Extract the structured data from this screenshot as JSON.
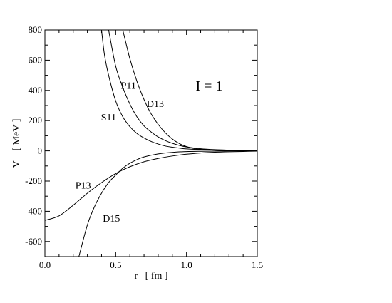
{
  "chart_data": {
    "type": "line",
    "xlabel": "r   [ fm ]",
    "ylabel": "V    [ MeV ]",
    "xlim": [
      0,
      1.5
    ],
    "ylim": [
      -700,
      800
    ],
    "x_ticks": [
      "0.0",
      "0.5",
      "1.0",
      "1.5"
    ],
    "y_ticks": [
      "-600",
      "-400",
      "-200",
      "0",
      "200",
      "400",
      "600",
      "800"
    ],
    "annotation": "I = 1",
    "grid": false,
    "series": [
      {
        "name": "S11",
        "x": [
          0.4,
          0.42,
          0.45,
          0.5,
          0.55,
          0.6,
          0.65,
          0.7,
          0.75,
          0.8,
          0.85,
          0.9,
          0.95,
          1.0,
          1.1,
          1.2,
          1.3,
          1.4,
          1.5
        ],
        "values": [
          800,
          640,
          500,
          330,
          225,
          160,
          115,
          85,
          62,
          45,
          32,
          24,
          18,
          13,
          8,
          5,
          3,
          2,
          1
        ]
      },
      {
        "name": "P11",
        "x": [
          0.45,
          0.5,
          0.55,
          0.6,
          0.65,
          0.7,
          0.75,
          0.8,
          0.85,
          0.9,
          0.95,
          1.0,
          1.1,
          1.2,
          1.3,
          1.4,
          1.5
        ],
        "values": [
          800,
          560,
          420,
          310,
          225,
          165,
          125,
          92,
          68,
          50,
          36,
          26,
          14,
          8,
          5,
          3,
          2
        ]
      },
      {
        "name": "D13",
        "x": [
          0.55,
          0.6,
          0.65,
          0.7,
          0.75,
          0.8,
          0.85,
          0.9,
          0.95,
          1.0,
          1.05,
          1.1,
          1.2,
          1.3,
          1.4,
          1.5
        ],
        "values": [
          800,
          610,
          460,
          340,
          245,
          175,
          120,
          78,
          48,
          28,
          16,
          10,
          4,
          2,
          1,
          0
        ]
      },
      {
        "name": "P13",
        "x": [
          0.0,
          0.1,
          0.2,
          0.3,
          0.4,
          0.5,
          0.6,
          0.7,
          0.8,
          0.9,
          1.0,
          1.1,
          1.2,
          1.3,
          1.4,
          1.5
        ],
        "values": [
          -460,
          -430,
          -360,
          -280,
          -210,
          -150,
          -105,
          -72,
          -50,
          -34,
          -22,
          -14,
          -9,
          -6,
          -4,
          -2
        ]
      },
      {
        "name": "D15",
        "x": [
          0.24,
          0.3,
          0.35,
          0.4,
          0.45,
          0.5,
          0.55,
          0.6,
          0.65,
          0.7,
          0.8,
          0.9,
          1.0,
          1.1,
          1.2,
          1.3,
          1.4,
          1.5
        ],
        "values": [
          -700,
          -490,
          -370,
          -280,
          -210,
          -160,
          -115,
          -82,
          -58,
          -40,
          -20,
          -10,
          -5,
          -3,
          -2,
          -1,
          -1,
          0
        ]
      }
    ],
    "labels": [
      {
        "text": "S11",
        "x": 0.45,
        "y": 200
      },
      {
        "text": "P11",
        "x": 0.59,
        "y": 410
      },
      {
        "text": "D13",
        "x": 0.78,
        "y": 290
      },
      {
        "text": "P13",
        "x": 0.27,
        "y": -250
      },
      {
        "text": "D15",
        "x": 0.47,
        "y": -470
      }
    ],
    "annotation_pos": {
      "x": 1.16,
      "y": 400
    }
  }
}
